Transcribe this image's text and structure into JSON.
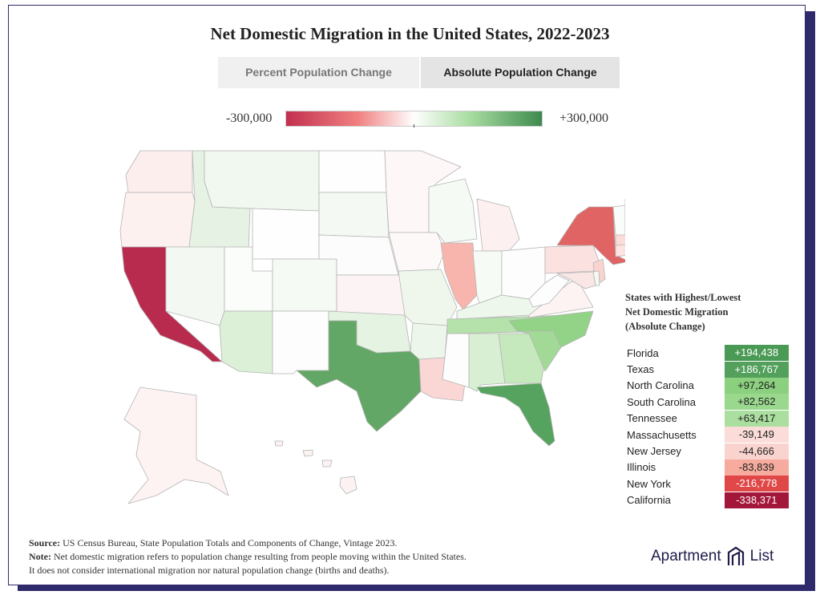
{
  "title": "Net Domestic Migration in the United States, 2022-2023",
  "tabs": [
    {
      "label": "Percent Population Change",
      "active": false
    },
    {
      "label": "Absolute Population Change",
      "active": true
    }
  ],
  "legend": {
    "min_label": "-300,000",
    "max_label": "+300,000",
    "min_color": "#c2304f",
    "mid_color": "#ffffff",
    "max_color": "#3e8a4e"
  },
  "table": {
    "heading": [
      "States with Highest/Lowest",
      "Net Domestic Migration",
      "(Absolute Change)"
    ],
    "rows": [
      {
        "state": "Florida",
        "value": "+194,438",
        "color": "#4a9a55",
        "text_color": "#ffffff"
      },
      {
        "state": "Texas",
        "value": "+186,767",
        "color": "#52a05b",
        "text_color": "#ffffff"
      },
      {
        "state": "North Carolina",
        "value": "+97,264",
        "color": "#8bd07f",
        "text_color": "#222222"
      },
      {
        "state": "South Carolina",
        "value": "+82,562",
        "color": "#9ad88e",
        "text_color": "#222222"
      },
      {
        "state": "Tennessee",
        "value": "+63,417",
        "color": "#abdfa0",
        "text_color": "#222222"
      },
      {
        "state": "Massachusetts",
        "value": "-39,149",
        "color": "#fbdcd8",
        "text_color": "#222222"
      },
      {
        "state": "New Jersey",
        "value": "-44,666",
        "color": "#f9d4cf",
        "text_color": "#222222"
      },
      {
        "state": "Illinois",
        "value": "-83,839",
        "color": "#f6ab9e",
        "text_color": "#222222"
      },
      {
        "state": "New York",
        "value": "-216,778",
        "color": "#e04848",
        "text_color": "#ffffff"
      },
      {
        "state": "California",
        "value": "-338,371",
        "color": "#a3173a",
        "text_color": "#ffffff"
      }
    ]
  },
  "footer": {
    "source_label": "Source:",
    "source_text": "US Census Bureau, State Population Totals and Components of Change, Vintage 2023.",
    "note_label": "Note:",
    "note_text": "Net domestic migration refers to population change resulting from people moving within the United States.",
    "note_text2": "It does not consider international migration nor natural population change (births and deaths)."
  },
  "brand": {
    "left": "Apartment",
    "right": "List"
  },
  "map": {
    "state_colors": {
      "washington": "#fdeeee",
      "oregon": "#fdf1f0",
      "california": "#b82b4e",
      "idaho": "#e6f3e4",
      "nevada": "#f3f9f2",
      "utah": "#fafdfa",
      "arizona": "#dbf0d6",
      "montana": "#f1f8ef",
      "wyoming": "#fdfefd",
      "colorado": "#f5faf4",
      "new_mexico": "#fdfdfd",
      "north_dakota": "#fefefe",
      "south_dakota": "#f4faf3",
      "nebraska": "#fdfcfc",
      "kansas": "#fcf4f4",
      "oklahoma": "#e5f3e2",
      "texas": "#62a766",
      "minnesota": "#fdf7f7",
      "iowa": "#fdf9f9",
      "missouri": "#eff7ed",
      "arkansas": "#edf6eb",
      "louisiana": "#fad7d5",
      "wisconsin": "#f5fbf4",
      "illinois": "#f7b5ad",
      "michigan": "#fdf0f0",
      "indiana": "#f7fbf6",
      "ohio": "#fefdfd",
      "kentucky": "#eef7ec",
      "tennessee": "#b5e2ab",
      "mississippi": "#fdfdfd",
      "alabama": "#d9efd4",
      "georgia": "#c6e8bd",
      "florida": "#56a35f",
      "south_carolina": "#a3d997",
      "north_carolina": "#93d387",
      "virginia": "#fdf3f3",
      "west_virginia": "#fdfdfd",
      "pennsylvania": "#fbe2e0",
      "new_york": "#e06464",
      "new_jersey": "#f9d4cf",
      "maryland": "#fae6e5",
      "delaware": "#f3faf2",
      "connecticut": "#fde4e2",
      "massachusetts": "#fbdcd8",
      "vermont": "#f9fcf8",
      "new_hampshire": "#eef7ec",
      "maine": "#f2f9f1",
      "rhode_island": "#fde8e6",
      "alaska": "#fdf3f3",
      "hawaii": "#fcf2f2"
    }
  }
}
